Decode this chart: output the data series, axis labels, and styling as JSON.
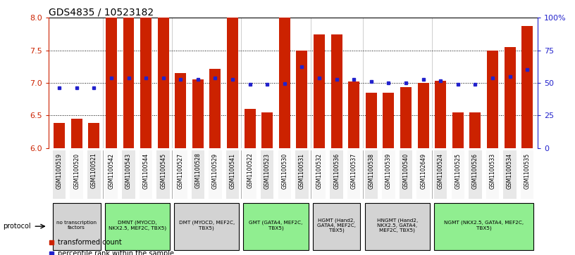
{
  "title": "GDS4835 / 10523182",
  "samples": [
    "GSM1100519",
    "GSM1100520",
    "GSM1100521",
    "GSM1100542",
    "GSM1100543",
    "GSM1100544",
    "GSM1100545",
    "GSM1100527",
    "GSM1100528",
    "GSM1100529",
    "GSM1100541",
    "GSM1100522",
    "GSM1100523",
    "GSM1100530",
    "GSM1100531",
    "GSM1100532",
    "GSM1100536",
    "GSM1100537",
    "GSM1100538",
    "GSM1100539",
    "GSM1100540",
    "GSM1102649",
    "GSM1100524",
    "GSM1100525",
    "GSM1100526",
    "GSM1100533",
    "GSM1100534",
    "GSM1100535"
  ],
  "bar_values": [
    6.38,
    6.45,
    6.38,
    8.0,
    8.0,
    8.0,
    8.0,
    7.15,
    7.05,
    7.22,
    8.0,
    6.6,
    6.55,
    8.0,
    7.5,
    7.75,
    7.75,
    7.02,
    6.85,
    6.85,
    6.93,
    7.0,
    7.03,
    6.55,
    6.55,
    7.5,
    7.55,
    7.88
  ],
  "blue_values": [
    6.92,
    6.92,
    6.92,
    7.08,
    7.08,
    7.08,
    7.08,
    7.05,
    7.05,
    7.08,
    7.05,
    6.98,
    6.98,
    6.99,
    7.25,
    7.08,
    7.05,
    7.05,
    7.02,
    7.0,
    7.0,
    7.05,
    7.03,
    6.98,
    6.98,
    7.08,
    7.1,
    7.2
  ],
  "groups": [
    {
      "label": "no transcription\nfactors",
      "start": 0,
      "end": 2,
      "color": "#d3d3d3"
    },
    {
      "label": "DMNT (MYOCD,\nNKX2.5, MEF2C, TBX5)",
      "start": 3,
      "end": 6,
      "color": "#90ee90"
    },
    {
      "label": "DMT (MYOCD, MEF2C,\nTBX5)",
      "start": 7,
      "end": 10,
      "color": "#d3d3d3"
    },
    {
      "label": "GMT (GATA4, MEF2C,\nTBX5)",
      "start": 11,
      "end": 14,
      "color": "#90ee90"
    },
    {
      "label": "HGMT (Hand2,\nGATA4, MEF2C,\nTBX5)",
      "start": 15,
      "end": 17,
      "color": "#d3d3d3"
    },
    {
      "label": "HNGMT (Hand2,\nNKX2.5, GATA4,\nMEF2C, TBX5)",
      "start": 18,
      "end": 21,
      "color": "#d3d3d3"
    },
    {
      "label": "NGMT (NKX2.5, GATA4, MEF2C,\nTBX5)",
      "start": 22,
      "end": 27,
      "color": "#90ee90"
    }
  ],
  "ylim": [
    6.0,
    8.0
  ],
  "bar_color": "#cc2200",
  "blue_color": "#2222cc",
  "title_fontsize": 10,
  "col_colors": [
    "#e8e8e8",
    "#f8f8f8"
  ]
}
